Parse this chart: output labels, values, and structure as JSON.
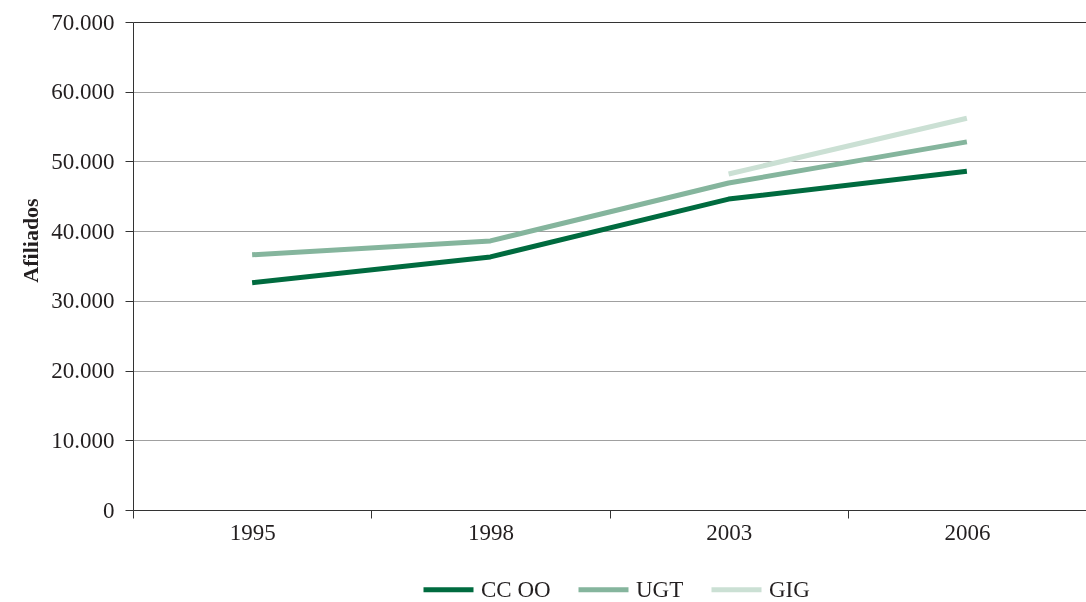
{
  "chart_data": {
    "type": "line",
    "ylabel": "Afiliados",
    "categories": [
      "1995",
      "1998",
      "2003",
      "2006"
    ],
    "series": [
      {
        "name": "CC OO",
        "color": "#006b3f",
        "values": [
          32600,
          36300,
          44600,
          48600
        ]
      },
      {
        "name": "UGT",
        "color": "#85b59d",
        "values": [
          36600,
          38600,
          46900,
          52800
        ]
      },
      {
        "name": "GIG",
        "color": "#cbe0d4",
        "values": [
          null,
          null,
          48200,
          56200
        ]
      }
    ],
    "ylim": [
      0,
      70000
    ],
    "yticks": [
      0,
      {
        "value": 10000,
        "label": "10.000"
      },
      {
        "value": 20000,
        "label": "20.000"
      },
      {
        "value": 30000,
        "label": "30.000"
      },
      {
        "value": 40000,
        "label": "40.000"
      },
      {
        "value": 50000,
        "label": "50.000"
      },
      {
        "value": 60000,
        "label": "60.000"
      },
      {
        "value": 70000,
        "label": "70.000"
      }
    ],
    "grid": "y",
    "legend": "bottom",
    "marker": "none",
    "line_style": "solid"
  }
}
